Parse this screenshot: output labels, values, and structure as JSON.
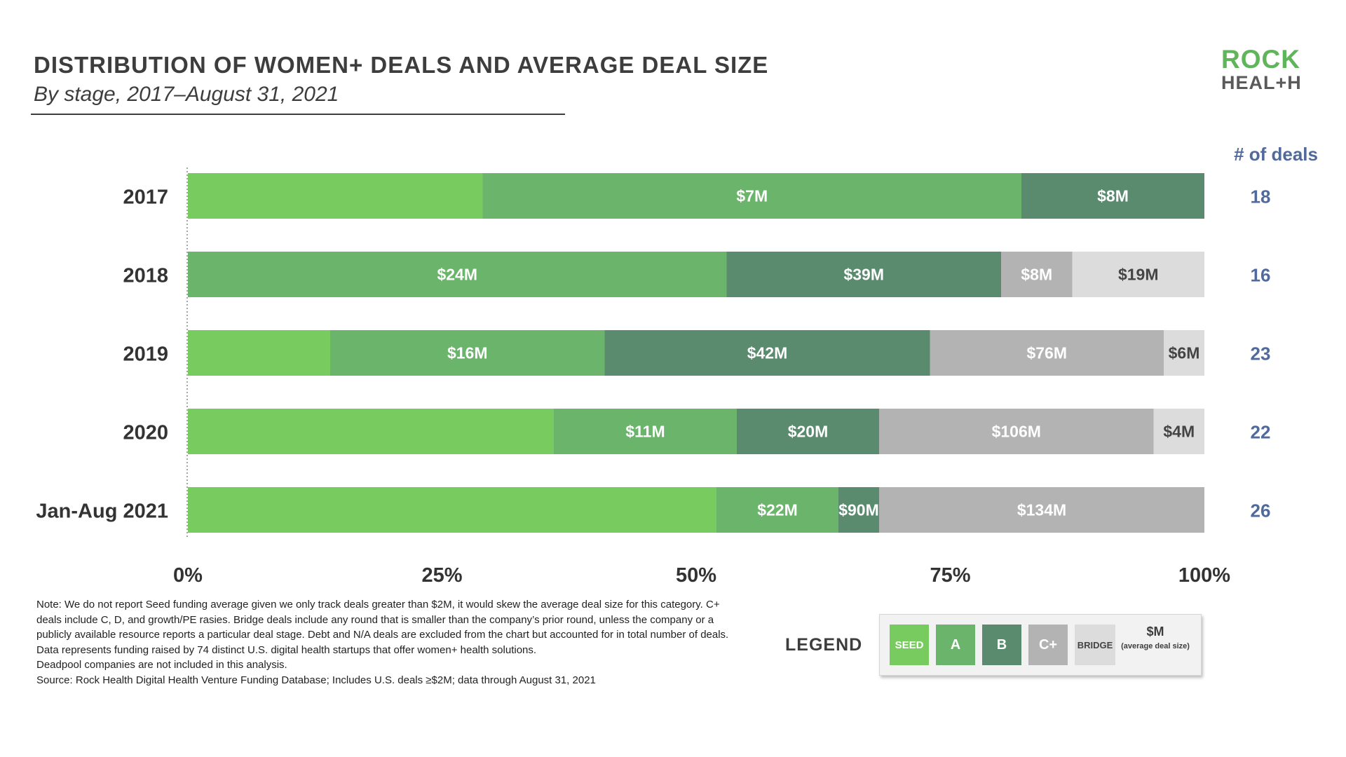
{
  "header": {
    "title": "DISTRIBUTION OF WOMEN+ DEALS AND AVERAGE DEAL SIZE",
    "subtitle": "By stage, 2017–August 31, 2021"
  },
  "logo": {
    "line1": "ROCK",
    "line2": "HEAL+H"
  },
  "deals_header": "# of deals",
  "colors": {
    "seed": "#78cb5f",
    "a": "#6bb46b",
    "b": "#5a8b6e",
    "cplus": "#b3b3b3",
    "bridge": "#dcdcdc",
    "deals_text": "#506a9c"
  },
  "chart_data": {
    "type": "bar",
    "orientation": "horizontal",
    "stacked": "percent",
    "categories": [
      "2017",
      "2018",
      "2019",
      "2020",
      "Jan-Aug 2021"
    ],
    "xlim": [
      0,
      100
    ],
    "x_ticks": [
      "0%",
      "25%",
      "50%",
      "75%",
      "100%"
    ],
    "series": [
      {
        "name": "SEED",
        "key": "seed",
        "values": [
          29,
          0,
          14,
          36,
          52
        ],
        "labels": [
          "",
          "",
          "",
          "",
          ""
        ]
      },
      {
        "name": "A",
        "key": "a",
        "values": [
          53,
          53,
          27,
          18,
          12
        ],
        "labels": [
          "$7M",
          "$24M",
          "$16M",
          "$11M",
          "$22M"
        ]
      },
      {
        "name": "B",
        "key": "b",
        "values": [
          18,
          27,
          32,
          14,
          4
        ],
        "labels": [
          "$8M",
          "$39M",
          "$42M",
          "$20M",
          "$90M"
        ]
      },
      {
        "name": "C+",
        "key": "cplus",
        "values": [
          0,
          7,
          23,
          27,
          32
        ],
        "labels": [
          "",
          "$8M",
          "$76M",
          "$106M",
          "$134M"
        ]
      },
      {
        "name": "BRIDGE",
        "key": "bridge",
        "values": [
          0,
          13,
          4,
          5,
          0
        ],
        "labels": [
          "",
          "$19M",
          "$6M",
          "$4M",
          ""
        ]
      }
    ],
    "deals": [
      "18",
      "16",
      "23",
      "22",
      "26"
    ]
  },
  "legend": {
    "label": "LEGEND",
    "items": [
      {
        "label": "SEED",
        "key": "seed"
      },
      {
        "label": "A",
        "key": "a"
      },
      {
        "label": "B",
        "key": "b"
      },
      {
        "label": "C+",
        "key": "cplus"
      },
      {
        "label": "BRIDGE",
        "key": "bridge"
      }
    ],
    "dollar_label": "$M",
    "dollar_sub": "(average deal size)"
  },
  "notes": [
    "Note: We do not report Seed funding average given we only track deals greater than $2M, it would skew the average deal size for this category. C+ deals include C, D, and growth/PE rasies. Bridge deals include any round that is smaller than the company’s prior round, unless the company or a publicly available resource reports a particular deal stage. Debt and N/A deals are excluded from the chart but accounted for in total number of deals.",
    "Data represents funding raised by 74 distinct U.S. digital health startups that offer women+ health solutions.",
    "Deadpool companies are not included in this analysis.",
    "Source: Rock Health Digital Health Venture Funding Database; Includes U.S. deals ≥$2M; data through August 31, 2021"
  ]
}
